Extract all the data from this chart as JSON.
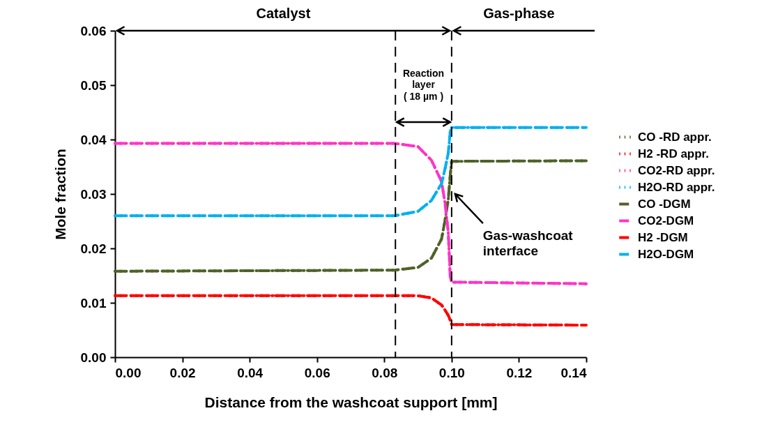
{
  "chart_data": {
    "type": "line",
    "xlabel": "Distance from the washcoat support [mm]",
    "ylabel": "Mole fraction",
    "x": [
      0,
      0.083,
      0.09,
      0.094,
      0.097,
      0.098,
      0.099,
      0.0996,
      0.1,
      0.14
    ],
    "series": [
      {
        "name": "CO  -RD appr.",
        "color": "#4f6228",
        "line_style": "dotted",
        "values": [
          0.0158,
          0.016,
          0.0165,
          0.0182,
          0.0217,
          0.025,
          0.029,
          0.0335,
          0.036,
          0.0361
        ]
      },
      {
        "name": "H2   -RD appr.",
        "color": "#ff0000",
        "line_style": "dotted",
        "values": [
          0.0113,
          0.0113,
          0.0113,
          0.0109,
          0.0096,
          0.0087,
          0.0077,
          0.0068,
          0.006,
          0.0059
        ]
      },
      {
        "name": "CO2-RD appr.",
        "color": "#ff3399",
        "line_style": "dotted",
        "values": [
          0.0393,
          0.0393,
          0.0387,
          0.0362,
          0.0323,
          0.0285,
          0.023,
          0.0147,
          0.0138,
          0.0135
        ]
      },
      {
        "name": "H2O-RD appr.",
        "color": "#00b0f0",
        "line_style": "dotted",
        "values": [
          0.026,
          0.026,
          0.0268,
          0.0288,
          0.0319,
          0.0345,
          0.0375,
          0.0415,
          0.0422,
          0.0422
        ]
      },
      {
        "name": "CO  -DGM",
        "color": "#4f6228",
        "line_style": "dashed",
        "values": [
          0.0158,
          0.016,
          0.0165,
          0.0182,
          0.0217,
          0.025,
          0.029,
          0.0335,
          0.036,
          0.0361
        ]
      },
      {
        "name": "CO2-DGM",
        "color": "#ff33cc",
        "line_style": "dashed",
        "values": [
          0.0393,
          0.0393,
          0.0387,
          0.0362,
          0.0323,
          0.0285,
          0.023,
          0.0147,
          0.0138,
          0.0135
        ]
      },
      {
        "name": "H2   -DGM",
        "color": "#ff0000",
        "line_style": "dashed",
        "values": [
          0.0113,
          0.0113,
          0.0113,
          0.0109,
          0.0096,
          0.0087,
          0.0077,
          0.0068,
          0.006,
          0.0059
        ]
      },
      {
        "name": "H2O-DGM",
        "color": "#00b0f0",
        "line_style": "dashed",
        "values": [
          0.026,
          0.026,
          0.0268,
          0.0288,
          0.0319,
          0.0345,
          0.0375,
          0.0415,
          0.0422,
          0.0422
        ]
      }
    ],
    "xlim": [
      0,
      0.14
    ],
    "xticks": [
      {
        "value": 0,
        "label": "0.00"
      },
      {
        "value": 0.02,
        "label": "0.02"
      },
      {
        "value": 0.04,
        "label": "0.04"
      },
      {
        "value": 0.06,
        "label": "0.06"
      },
      {
        "value": 0.08,
        "label": "0.08"
      },
      {
        "value": 0.1,
        "label": "0.10"
      },
      {
        "value": 0.12,
        "label": "0.12"
      },
      {
        "value": 0.14,
        "label": "0.14"
      }
    ],
    "ylim": [
      0,
      0.06
    ],
    "yticks": [
      {
        "value": 0,
        "label": "0.00"
      },
      {
        "value": 0.01,
        "label": "0.01"
      },
      {
        "value": 0.02,
        "label": "0.02"
      },
      {
        "value": 0.03,
        "label": "0.03"
      },
      {
        "value": 0.04,
        "label": "0.04"
      },
      {
        "value": 0.05,
        "label": "0.05"
      },
      {
        "value": 0.06,
        "label": "0.06"
      }
    ],
    "ref_lines": [
      {
        "axis": "x",
        "value": 0.0833,
        "color": "#000000",
        "line_style": "dashed"
      },
      {
        "axis": "x",
        "value": 0.1,
        "color": "#000000",
        "line_style": "dashed"
      }
    ],
    "annotations": [
      "Catalyst",
      "Gas-phase",
      "Reaction\nlayer\n( 18 µm )",
      "Gas-washcoat\ninterface"
    ],
    "grid": false,
    "legend": "right",
    "marker": "none"
  }
}
